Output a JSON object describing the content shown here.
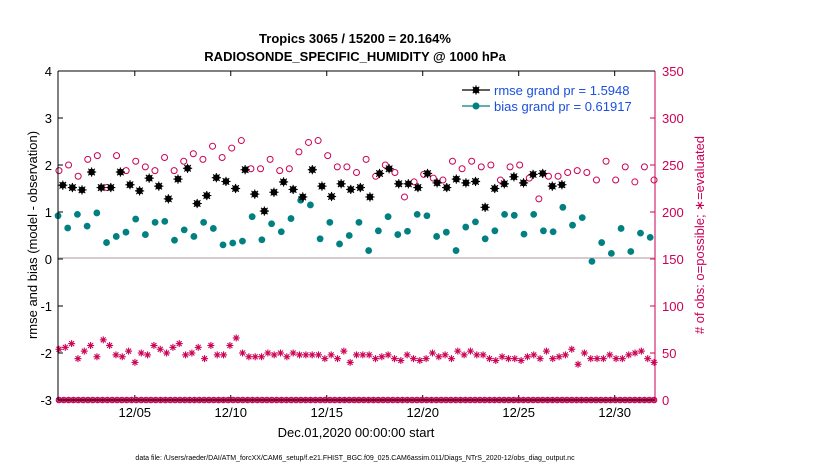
{
  "chart_data": {
    "type": "scatter",
    "title": "Tropics 3065 / 15200 = 20.164%",
    "subtitle": "RADIOSONDE_SPECIFIC_HUMIDITY @ 1000 hPa",
    "xlabel": "Dec.01,2020 00:00:00 start",
    "ylabel": "rmse and bias (model - observation)",
    "y2label": "# of obs: o=possible; ∗=evaluated",
    "xlim": [
      1,
      32.1
    ],
    "ylim": [
      -3,
      4
    ],
    "y2lim": [
      0,
      350
    ],
    "x_ticks": [
      5,
      10,
      15,
      20,
      25,
      30
    ],
    "x_tick_labels": [
      "12/05",
      "12/10",
      "12/15",
      "12/20",
      "12/25",
      "12/30"
    ],
    "y_ticks": [
      -3,
      -2,
      -1,
      0,
      1,
      2,
      3,
      4
    ],
    "y_tick_labels": [
      "-3",
      "-2",
      "-1",
      "0",
      "1",
      "2",
      "3",
      "4"
    ],
    "y2_ticks": [
      0,
      50,
      100,
      150,
      200,
      250,
      300,
      350
    ],
    "y2_tick_labels": [
      "0",
      "50",
      "100",
      "150",
      "200",
      "250",
      "300",
      "350"
    ],
    "legend": [
      "rmse grand pr = 1.5948",
      "bias grand pr = 0.61917"
    ],
    "legend_position": "top-right",
    "footer": "data file: /Users/raeder/DAI/ATM_forcXX/CAM6_setup/f.e21.FHIST_BGC.f09_025.CAM6assim.011/Diags_NTrS_2020-12/obs_diag_output.nc",
    "x": [
      1.0,
      1.25,
      1.5,
      1.75,
      2.0,
      2.25,
      2.5,
      2.75,
      3.0,
      3.25,
      3.5,
      3.75,
      4.0,
      4.25,
      4.5,
      4.75,
      5.0,
      5.25,
      5.5,
      5.75,
      6.0,
      6.25,
      6.5,
      6.75,
      7.0,
      7.25,
      7.5,
      7.75,
      8.0,
      8.25,
      8.5,
      8.75,
      9.0,
      9.25,
      9.5,
      9.75,
      10.0,
      10.25,
      10.5,
      10.75,
      11.0,
      11.25,
      11.5,
      11.75,
      12.0,
      12.25,
      12.5,
      12.75,
      13.0,
      13.25,
      13.5,
      13.75,
      14.0,
      14.25,
      14.5,
      14.75,
      15.0,
      15.25,
      15.5,
      15.75,
      16.0,
      16.25,
      16.5,
      16.75,
      17.0,
      17.25,
      17.5,
      17.75,
      18.0,
      18.25,
      18.5,
      18.75,
      19.0,
      19.25,
      19.5,
      19.75,
      20.0,
      20.25,
      20.5,
      20.75,
      21.0,
      21.25,
      21.5,
      21.75,
      22.0,
      22.25,
      22.5,
      22.75,
      23.0,
      23.25,
      23.5,
      23.75,
      24.0,
      24.25,
      24.5,
      24.75,
      25.0,
      25.25,
      25.5,
      25.75,
      26.0,
      26.25,
      26.5,
      26.75,
      27.0,
      27.25,
      27.5,
      27.75,
      28.0,
      28.25,
      28.5,
      28.75,
      29.0,
      29.25,
      29.5,
      29.75,
      30.0,
      30.25,
      30.5,
      30.75,
      31.0,
      31.25,
      31.5,
      31.75
    ],
    "series": [
      {
        "name": "rmse grand pr = 1.5948",
        "axis": "left",
        "marker": "filled-circle-star",
        "color": "#000000",
        "values": [
          null,
          1.57,
          null,
          1.52,
          null,
          1.47,
          null,
          1.85,
          null,
          1.52,
          null,
          1.52,
          null,
          1.85,
          null,
          1.58,
          null,
          1.45,
          null,
          1.72,
          null,
          1.55,
          null,
          1.28,
          null,
          1.7,
          null,
          1.93,
          null,
          1.18,
          null,
          1.35,
          null,
          1.73,
          null,
          1.65,
          null,
          1.5,
          null,
          1.9,
          null,
          1.38,
          null,
          1.02,
          null,
          1.42,
          null,
          1.64,
          null,
          1.48,
          null,
          1.32,
          null,
          1.9,
          null,
          1.55,
          null,
          1.33,
          null,
          1.6,
          null,
          1.48,
          null,
          1.52,
          null,
          1.32,
          null,
          1.82,
          null,
          1.92,
          null,
          1.6,
          null,
          1.6,
          null,
          1.52,
          null,
          1.82,
          null,
          1.62,
          null,
          1.52,
          null,
          1.7,
          null,
          1.62,
          null,
          1.65,
          null,
          1.1,
          null,
          1.5,
          null,
          1.6,
          null,
          1.75,
          null,
          1.62,
          null,
          1.8,
          null,
          1.82,
          null,
          1.55,
          null,
          1.58
        ]
      },
      {
        "name": "bias grand pr = 0.61917",
        "axis": "left",
        "marker": "filled-circle",
        "color": "#008080",
        "values": [
          0.92,
          0.66,
          0.95,
          0.7,
          0.98,
          0.35,
          0.48,
          0.57,
          0.85,
          0.52,
          0.78,
          0.8,
          0.4,
          0.62,
          0.48,
          0.78,
          0.65,
          0.3,
          0.34,
          0.38,
          0.9,
          0.41,
          0.75,
          0.58,
          0.86,
          1.25,
          1.15,
          0.43,
          0.78,
          0.32,
          0.5,
          0.78,
          0.18,
          0.6,
          0.9,
          0.52,
          0.59,
          0.95,
          0.92,
          0.48,
          0.57,
          0.18,
          0.68,
          0.79,
          0.43,
          0.6,
          0.95,
          0.93,
          0.53,
          0.95,
          0.6,
          0.58,
          1.1,
          0.72,
          0.88,
          -0.05,
          0.35,
          0.12,
          0.65,
          0.16,
          0.55,
          0.46
        ]
      },
      {
        "name": "obs possible",
        "axis": "right",
        "marker": "open-circle",
        "color": "#cc0055",
        "values": [
          244,
          250,
          238,
          256,
          260,
          226,
          260,
          244,
          254,
          248,
          244,
          258,
          244,
          254,
          262,
          256,
          270,
          258,
          268,
          276,
          246,
          246,
          256,
          244,
          246,
          264,
          274,
          276,
          260,
          248,
          248,
          242,
          256,
          238,
          250,
          242,
          216,
          232,
          240,
          236,
          234,
          254,
          246,
          254,
          248,
          250,
          234,
          248,
          250,
          236,
          214,
          238,
          238,
          242,
          244,
          242,
          234,
          254,
          234,
          248,
          232,
          248,
          234
        ]
      },
      {
        "name": "obs evaluated",
        "axis": "right",
        "marker": "asterisk",
        "color": "#cc0055",
        "values": [
          54,
          56,
          60,
          44,
          52,
          58,
          46,
          64,
          58,
          48,
          46,
          52,
          40,
          50,
          48,
          58,
          54,
          50,
          56,
          60,
          48,
          50,
          56,
          44,
          58,
          48,
          48,
          58,
          66,
          50,
          46,
          46,
          46,
          50,
          48,
          50,
          46,
          50,
          48,
          48,
          48,
          48,
          44,
          48,
          44,
          52,
          40,
          48,
          48,
          48,
          44,
          46,
          48,
          44,
          42,
          48,
          44,
          42,
          44,
          50,
          46,
          48,
          44,
          52,
          48,
          52,
          48,
          48,
          44,
          42,
          46,
          44,
          44,
          42,
          46,
          48,
          44,
          52,
          44,
          46,
          48,
          54,
          38,
          50,
          44,
          44,
          44,
          48,
          44,
          44,
          48,
          50,
          52,
          44,
          40
        ]
      },
      {
        "name": "obs zero",
        "axis": "right",
        "marker": "circle-asterisk",
        "color": "#cc0055",
        "values": [
          0
        ]
      }
    ]
  }
}
